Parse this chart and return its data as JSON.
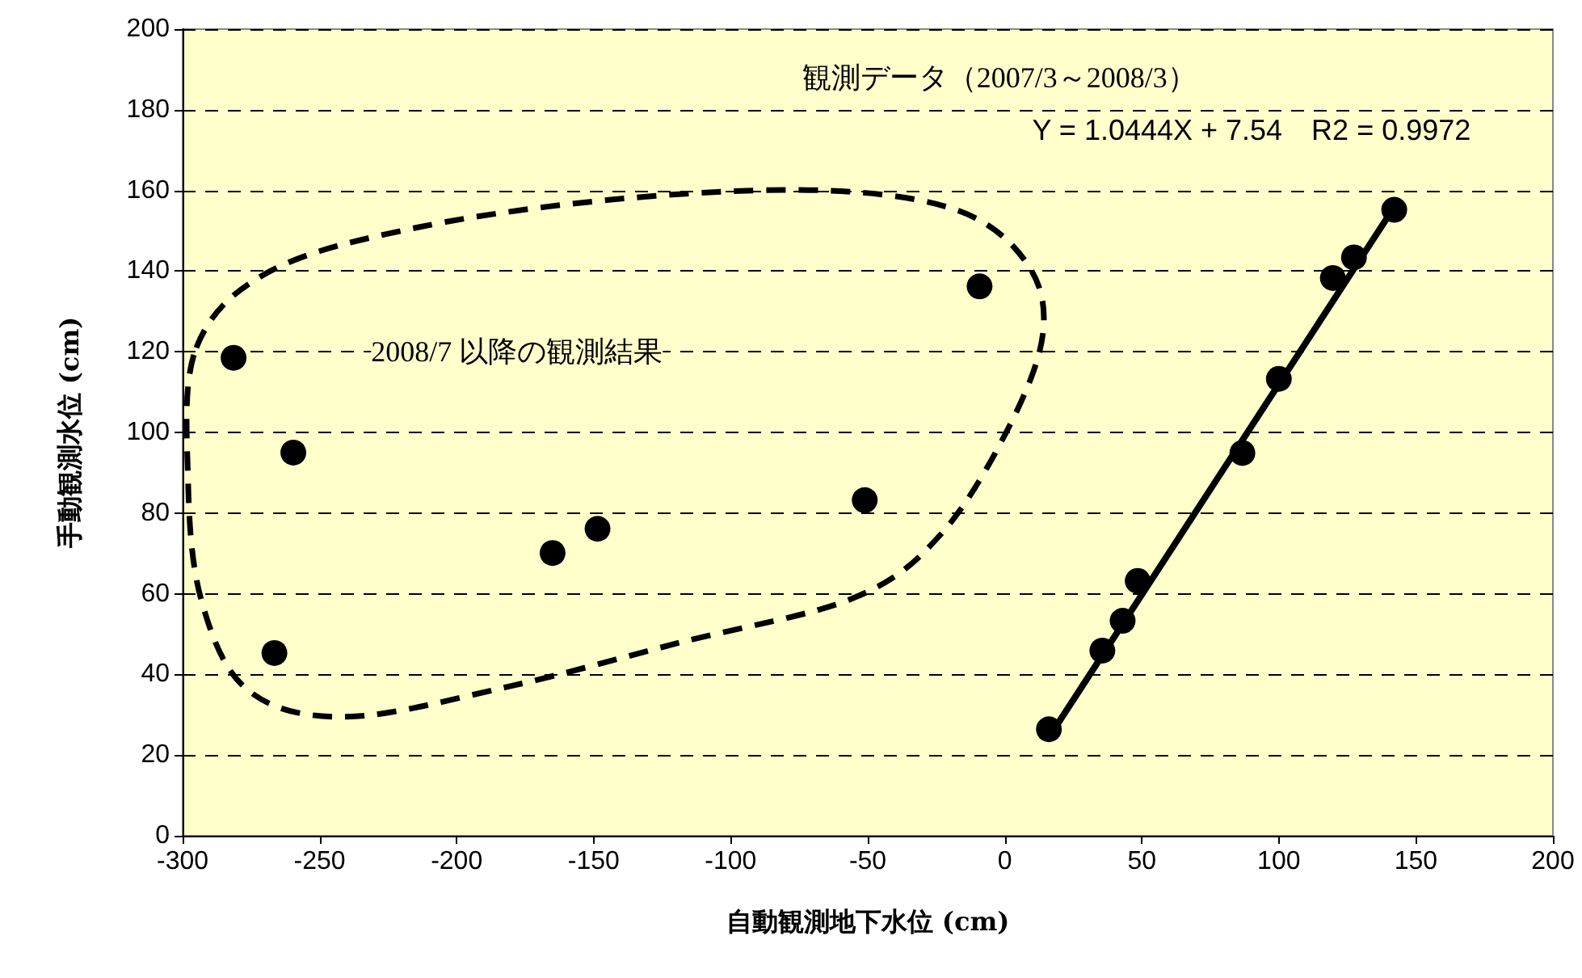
{
  "chart_data": {
    "type": "scatter",
    "xlabel": "自動観測地下水位 (cm)",
    "ylabel": "手動観測水位 (cm)",
    "annotations": [
      "観測データ（2007/3～2008/3）",
      "Y = 1.0444X + 7.54　R2 = 0.9972",
      "2008/7 以降の観測結果"
    ],
    "series": [
      {
        "color": "#000000",
        "x": [
          16.1,
          35.6,
          43.0,
          48.5,
          86.7,
          100.0,
          119.7,
          127.4,
          142.1
        ],
        "values": [
          26.4,
          45.9,
          53.3,
          63.2,
          94.9,
          113.3,
          138.3,
          143.4,
          155.2
        ]
      },
      {
        "color": "#000000",
        "x": [
          -281.4,
          -259.6,
          -266.5,
          -165.0,
          -148.6,
          -51.1,
          -9.2
        ],
        "values": [
          118.5,
          95.0,
          45.3,
          70.1,
          76.1,
          83.2,
          136.2
        ]
      },
      {
        "type": "line",
        "color": "#000000",
        "marker": "none",
        "line_style": "solid",
        "x": [
          16.1,
          142.1
        ],
        "values": [
          24.4,
          155.9
        ]
      }
    ],
    "xlim": [
      -300,
      200
    ],
    "xticks": [
      -300,
      -250,
      -200,
      -150,
      -100,
      -50,
      0,
      50,
      100,
      150,
      200
    ],
    "ylim": [
      0,
      200
    ],
    "yticks": [
      0,
      20,
      40,
      60,
      80,
      100,
      120,
      140,
      160,
      180,
      200
    ],
    "grid": "y",
    "marker": "circle"
  }
}
